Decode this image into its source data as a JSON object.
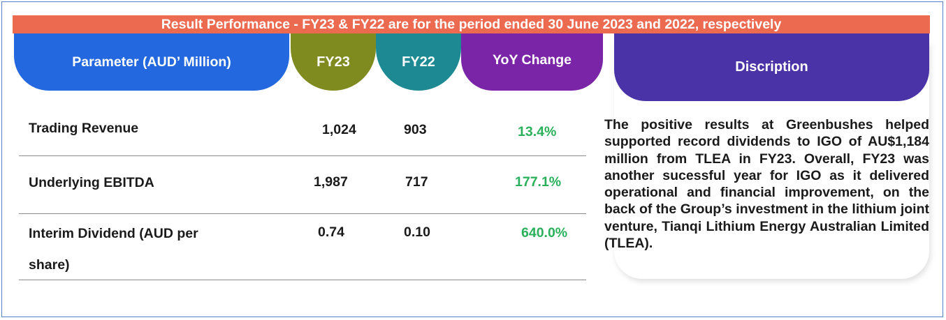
{
  "banner": "Result Performance - FY23 & FY22 are for the period ended 30 June 2023 and 2022, respectively",
  "headers": {
    "parameter": "Parameter (AUD’ Million)",
    "fy23": "FY23",
    "fy22": "FY22",
    "yoy": "YoY Change",
    "description": "Discription"
  },
  "rows": [
    {
      "parameter": "Trading Revenue",
      "fy23": "1,024",
      "fy22": "903",
      "yoy": "13.4%"
    },
    {
      "parameter": "Underlying EBITDA",
      "fy23": "1,987",
      "fy22": "717",
      "yoy": "177.1%"
    },
    {
      "parameter_line1": "Interim Dividend (AUD per",
      "parameter_line2": "share)",
      "fy23": "0.74",
      "fy22": "0.10",
      "yoy": "640.0%"
    }
  ],
  "description_text": "The positive results at Greenbushes helped supported record dividends to IGO of AU$1,184 million from TLEA in FY23. Overall, FY23 was another sucessful year for IGO as it delivered operational and financial improvement, on the back of the Group’s investment in the lithium joint venture, Tianqi Lithium Energy Australian Limited (TLEA).",
  "colors": {
    "banner": "#ec6a50",
    "parameter_header": "#2368de",
    "fy23_header": "#7f8a1f",
    "fy22_header": "#1d8a93",
    "yoy_header": "#7a25a8",
    "description_header": "#4a33a7",
    "positive_change": "#2ab05a"
  }
}
